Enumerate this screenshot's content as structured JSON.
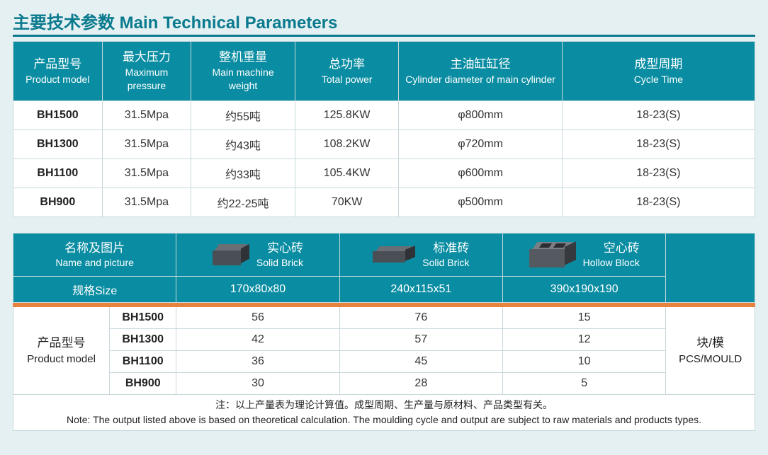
{
  "title": "主要技术参数 Main Technical Parameters",
  "t1": {
    "headers": [
      {
        "cn": "产品型号",
        "en": "Product model"
      },
      {
        "cn": "最大压力",
        "en": "Maximum pressure"
      },
      {
        "cn": "整机重量",
        "en": "Main machine weight"
      },
      {
        "cn": "总功率",
        "en": "Total power"
      },
      {
        "cn": "主油缸缸径",
        "en": "Cylinder diameter of main cylinder"
      },
      {
        "cn": "成型周期",
        "en": "Cycle Time"
      }
    ],
    "rows": [
      {
        "model": "BH1500",
        "pressure": "31.5Mpa",
        "weight": "约55吨",
        "power": "125.8KW",
        "cyl": "φ800mm",
        "cycle": "18-23(S)"
      },
      {
        "model": "BH1300",
        "pressure": "31.5Mpa",
        "weight": "约43吨",
        "power": "108.2KW",
        "cyl": "φ720mm",
        "cycle": "18-23(S)"
      },
      {
        "model": "BH1100",
        "pressure": "31.5Mpa",
        "weight": "约33吨",
        "power": "105.4KW",
        "cyl": "φ600mm",
        "cycle": "18-23(S)"
      },
      {
        "model": "BH900",
        "pressure": "31.5Mpa",
        "weight": "约22-25吨",
        "power": "70KW",
        "cyl": "φ500mm",
        "cycle": "18-23(S)"
      }
    ]
  },
  "t2": {
    "namepic": {
      "cn": "名称及图片",
      "en": "Name and picture"
    },
    "products": [
      {
        "cn": "实心砖",
        "en": "Solid Brick",
        "size": "170x80x80",
        "icon": "solid1"
      },
      {
        "cn": "标准砖",
        "en": "Solid Brick",
        "size": "240x115x51",
        "icon": "solid2"
      },
      {
        "cn": "空心砖",
        "en": "Hollow Block",
        "size": "390x190x190",
        "icon": "hollow"
      }
    ],
    "sizelabel": "规格Size",
    "pm": {
      "cn": "产品型号",
      "en": "Product model"
    },
    "unit": {
      "cn": "块/模",
      "en": "PCS/MOULD"
    },
    "rows": [
      {
        "model": "BH1500",
        "v": [
          "56",
          "76",
          "15"
        ]
      },
      {
        "model": "BH1300",
        "v": [
          "42",
          "57",
          "12"
        ]
      },
      {
        "model": "BH1100",
        "v": [
          "36",
          "45",
          "10"
        ]
      },
      {
        "model": "BH900",
        "v": [
          "30",
          "28",
          "5"
        ]
      }
    ],
    "note_cn": "注：以上产量表为理论计算值。成型周期、生产量与原材料、产品类型有关。",
    "note_en": "Note: The output listed above is based on theoretical calculation. The moulding cycle and output are subject to raw materials and products types."
  },
  "colors": {
    "teal": "#0a8da2",
    "bg": "#e5f0f2",
    "orange": "#e8833d",
    "border": "#c7d8db"
  }
}
